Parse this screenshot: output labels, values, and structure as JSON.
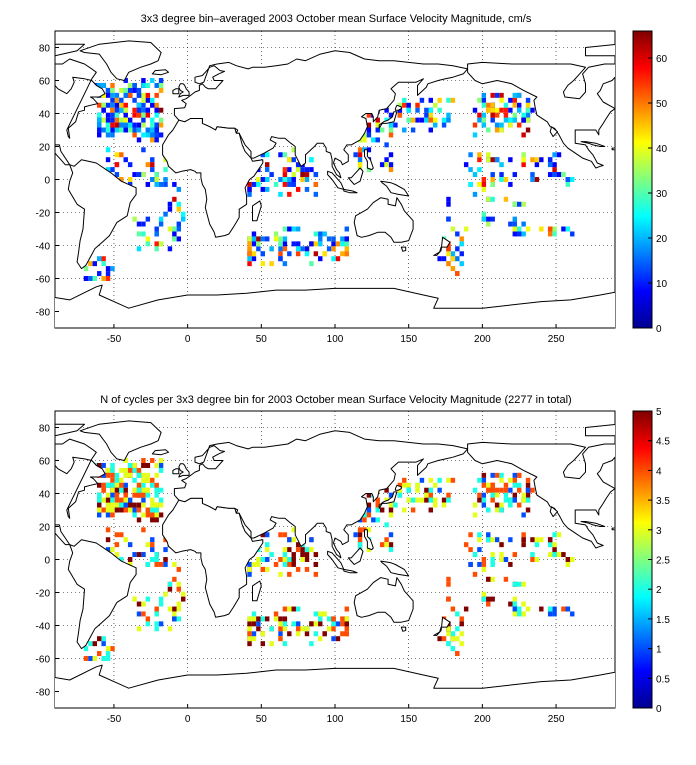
{
  "colors": {
    "land_outline": "#000000",
    "ocean_background": "#ffffff",
    "grid": "#000000",
    "colormap": "jet"
  },
  "icons": {
    "coastline": "coastline-outline"
  },
  "panels": [
    {
      "id": "velocity",
      "title": "3x3 degree bin–averaged 2003 October mean Surface Velocity Magnitude, cm/s",
      "xticks": [
        "-50",
        "0",
        "50",
        "100",
        "150",
        "200",
        "250"
      ],
      "yticks": [
        "80",
        "60",
        "40",
        "20",
        "0",
        "-20",
        "-40",
        "-60",
        "-80"
      ],
      "colorbar": {
        "min": 0,
        "max": 66,
        "ticks": [
          "0",
          "10",
          "20",
          "30",
          "40",
          "50",
          "60"
        ]
      },
      "bin_size_deg": 3,
      "x_range": [
        -90,
        290
      ],
      "y_range": [
        -90,
        90
      ]
    },
    {
      "id": "cycles",
      "title": "N of cycles per 3x3 degree bin for 2003 October mean Surface Velocity Magnitude (2277 in total)",
      "xticks": [
        "-50",
        "0",
        "50",
        "100",
        "150",
        "200",
        "250"
      ],
      "yticks": [
        "80",
        "60",
        "40",
        "20",
        "0",
        "-20",
        "-40",
        "-60",
        "-80"
      ],
      "colorbar": {
        "min": 0,
        "max": 5,
        "ticks": [
          "0",
          "0.5",
          "1",
          "1.5",
          "2",
          "2.5",
          "3",
          "3.5",
          "4",
          "4.5",
          "5"
        ]
      },
      "bin_size_deg": 3,
      "x_range": [
        -90,
        290
      ],
      "y_range": [
        -90,
        90
      ]
    }
  ]
}
